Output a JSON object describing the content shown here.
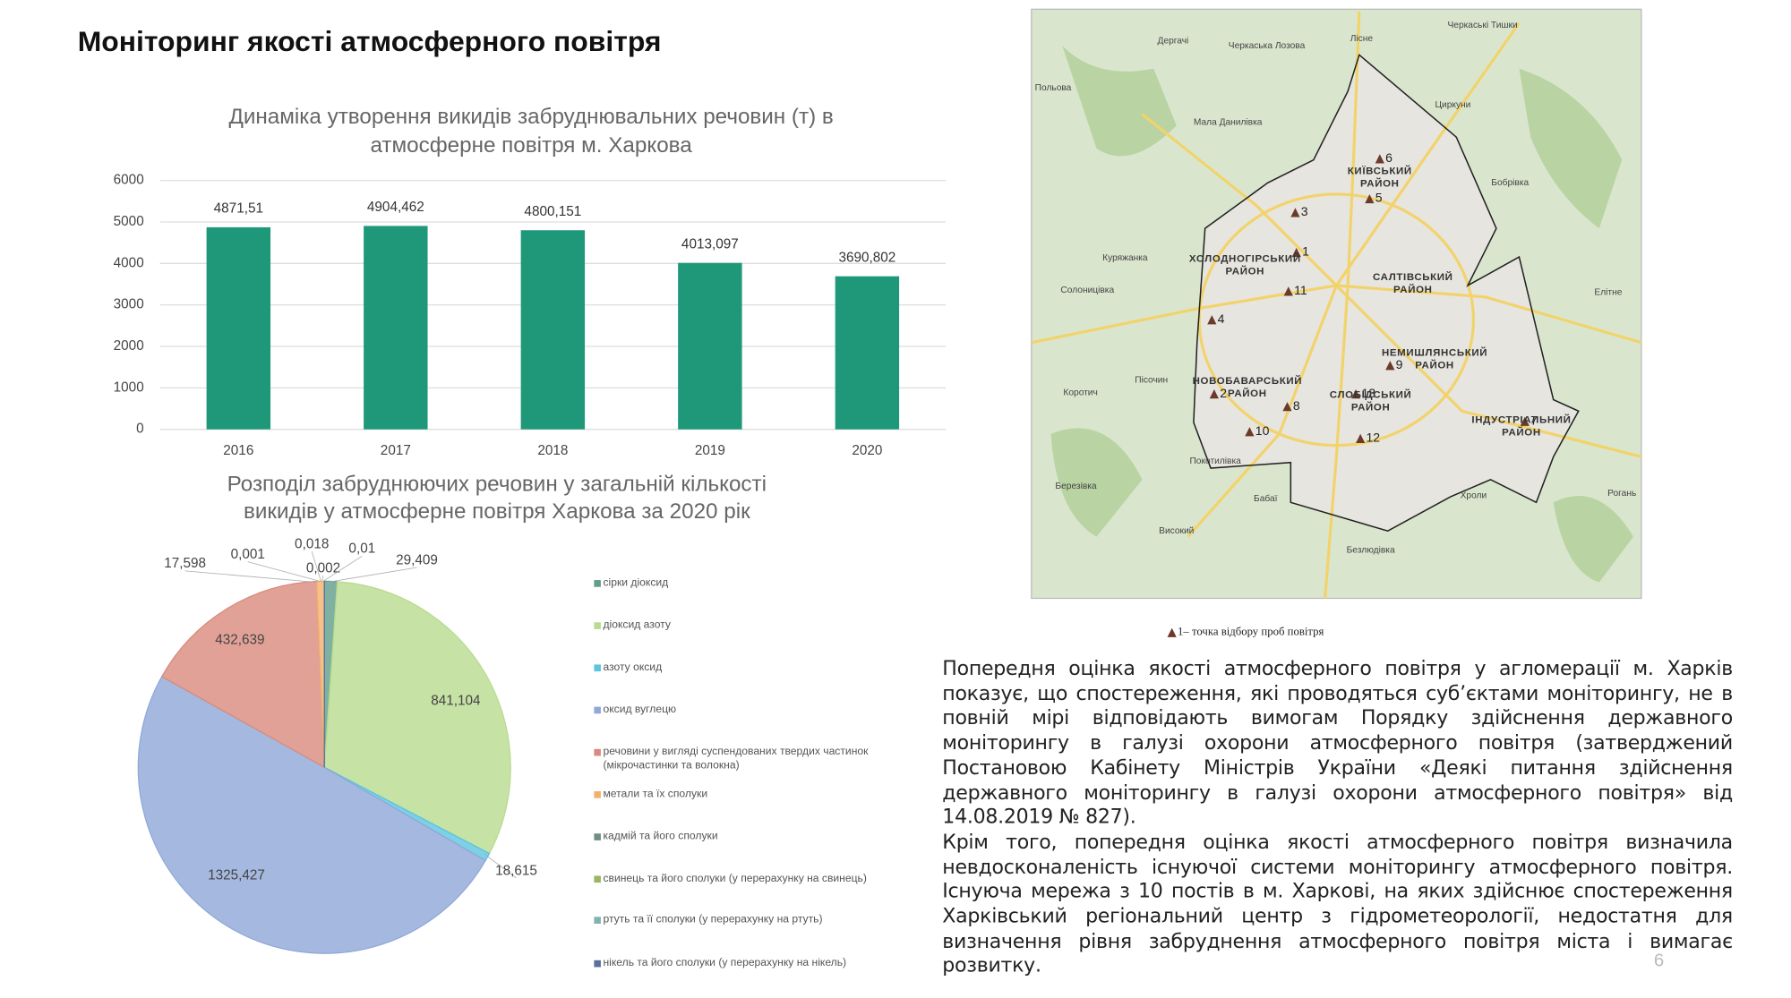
{
  "title": "Моніторинг якості атмосферного повітря",
  "chart_data": [
    {
      "type": "bar",
      "title": [
        "Динаміка утворення викидів забруднювальних речовин (т) в",
        "атмосферне повітря м. Харкова"
      ],
      "categories": [
        "2016",
        "2017",
        "2018",
        "2019",
        "2020"
      ],
      "values": [
        4871.51,
        4904.462,
        4800.151,
        4013.097,
        3690.802
      ],
      "value_labels": [
        "4871,51",
        "4904,462",
        "4800,151",
        "4013,097",
        "3690,802"
      ],
      "color": "#1e9878",
      "ylim": [
        0,
        6000
      ],
      "yticks": [
        0,
        1000,
        2000,
        3000,
        4000,
        5000,
        6000
      ],
      "grid": true
    },
    {
      "type": "pie",
      "title": [
        "Розподіл забруднюючих речовин у загальній кількості",
        "викидів у атмосферне повітря Харкова за 2020 рік"
      ],
      "categories": [
        "сірки діоксид",
        "діоксид азоту",
        "азоту оксид",
        "оксид вуглецю",
        "речовини у вигляді суспендованих твердих частинок (мікрочастинки та волокна)",
        "метали та їх сполуки",
        "кадмій та його сполуки",
        "свинець та його сполуки (у перерахунку на свинець)",
        "ртуть та її сполуки (у перерахунку на ртуть)",
        "нікель та його сполуки (у перерахунку на нікель)"
      ],
      "values": [
        29.409,
        841.104,
        18.615,
        1325.427,
        432.639,
        17.598,
        0.001,
        0.018,
        0.002,
        0.01
      ],
      "value_labels": [
        "29,409",
        "841,104",
        "18,615",
        "1325,427",
        "432,639",
        "17,598",
        "0,001",
        "0,018",
        "0,002",
        "0,01"
      ],
      "colors": [
        "#5e9e8a",
        "#b8db8f",
        "#5cc4df",
        "#8fa8d8",
        "#d98a7c",
        "#f4b06a",
        "#6f8f7f",
        "#9bb566",
        "#7fb3b0",
        "#5a6f9a"
      ],
      "legend": "right"
    }
  ],
  "map": {
    "caption": "1– точка відбору проб повітря",
    "posts": [
      "1",
      "2",
      "3",
      "4",
      "5",
      "6",
      "7",
      "8",
      "9",
      "10",
      "11",
      "12",
      "13"
    ],
    "districts": [
      [
        "КИЇВСЬКИЙ",
        "РАЙОН"
      ],
      [
        "ХОЛОДНОГІРСЬКИЙ",
        "РАЙОН"
      ],
      [
        "САЛТІВСЬКИЙ",
        "РАЙОН"
      ],
      [
        "НЕМИШЛЯНСЬКИЙ",
        "РАЙОН"
      ],
      [
        "НОВОБАВАРСЬКИЙ",
        "РАЙОН"
      ],
      [
        "СЛОБІДСЬКИЙ",
        "РАЙОН"
      ],
      [
        "ІНДУСТРІАЛЬНИЙ",
        "РАЙОН"
      ]
    ],
    "places": [
      "Дергачі",
      "Черкаська Лозова",
      "Лісне",
      "Черкаські Тишки",
      "Польова",
      "Мала Данилівка",
      "Циркуни",
      "Бобрівка",
      "Куряжанка",
      "Солоницівка",
      "Пісочин",
      "Коротич",
      "Покотилівка",
      "Бабаї",
      "Безлюдівка",
      "Рогань",
      "Хроли",
      "Високий",
      "Елітне",
      "Березівка"
    ]
  },
  "text": {
    "paragraphs": [
      "Попередня оцінка якості атмосферного повітря у агломерації м. Харків показує, що спостереження, які проводяться суб’єктами моніторингу, не в повній мірі відповідають вимогам Порядку здійснення державного моніторингу в галузі охорони атмосферного повітря (затверджений Постановою Кабінету Міністрів України «Деякі питання здійснення державного моніторингу в галузі охорони атмосферного повітря» від 14.08.2019 № 827).",
      "Крім того, попередня оцінка якості атмосферного повітря визначила невдосконаленість існуючої системи моніторингу атмосферного повітря. Існуюча мережа з 10 постів в м. Харкові, на яких здійснює спостереження Харківський регіональний центр з гідрометеорології, недостатня для визначення рівня забруднення атмосферного повітря міста і вимагає розвитку."
    ],
    "page_number": "6"
  }
}
